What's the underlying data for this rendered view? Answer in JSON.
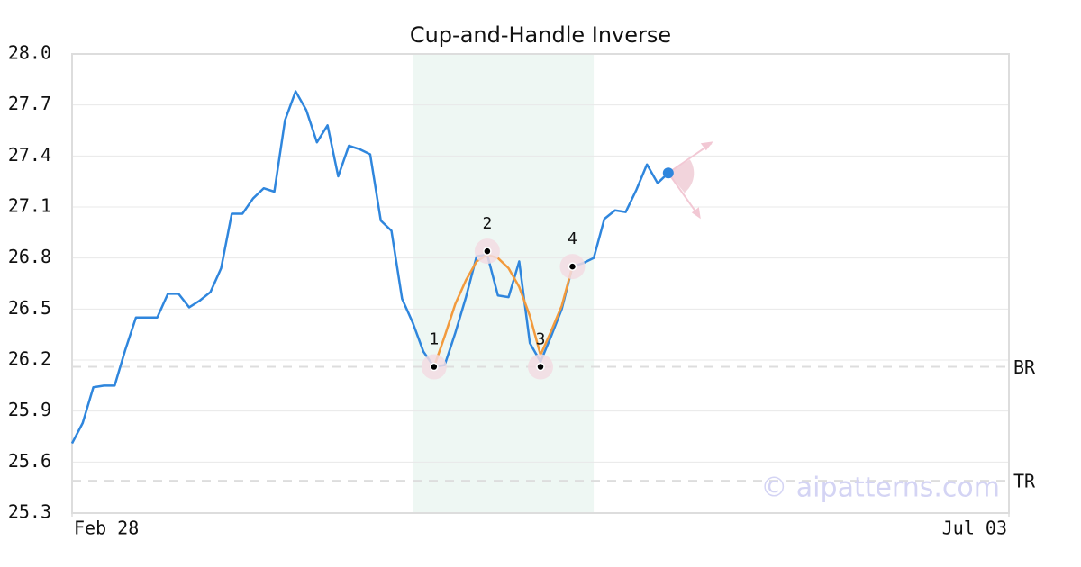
{
  "chart_data": {
    "type": "line",
    "title": "Cup-and-Handle Inverse",
    "x": [
      0,
      1,
      2,
      3,
      4,
      5,
      6,
      7,
      8,
      9,
      10,
      11,
      12,
      13,
      14,
      15,
      16,
      17,
      18,
      19,
      20,
      21,
      22,
      23,
      24,
      25,
      26,
      27,
      28,
      29,
      30,
      31,
      32,
      33,
      34,
      35,
      36,
      37,
      38,
      39,
      40,
      41,
      42,
      43,
      44,
      45,
      46,
      47,
      48,
      49,
      50,
      51,
      52,
      53,
      54,
      55,
      56
    ],
    "xlim": [
      0,
      88
    ],
    "xticks": [
      {
        "value": 0,
        "label": "Feb 28"
      },
      {
        "value": 88,
        "label": "Jul 03"
      }
    ],
    "ylim": [
      25.3,
      28.0
    ],
    "yticks": [
      25.3,
      25.6,
      25.9,
      26.2,
      26.5,
      26.8,
      27.1,
      27.4,
      27.7,
      {
        "value": 28.0,
        "label": "28.0"
      }
    ],
    "grid": true,
    "series": [
      {
        "color": "#2f86dd",
        "values": [
          25.71,
          25.83,
          26.04,
          26.05,
          26.05,
          26.26,
          26.45,
          26.45,
          26.45,
          26.59,
          26.59,
          26.51,
          26.55,
          26.6,
          26.74,
          27.06,
          27.06,
          27.15,
          27.21,
          27.19,
          27.61,
          27.78,
          27.67,
          27.48,
          27.58,
          27.28,
          27.46,
          27.44,
          27.41,
          27.02,
          26.96,
          26.56,
          26.42,
          26.25,
          26.16,
          26.17,
          26.36,
          26.57,
          26.81,
          26.82,
          26.58,
          26.57,
          26.78,
          26.3,
          26.19,
          26.34,
          26.5,
          26.75,
          26.77,
          26.8,
          27.03,
          27.08,
          27.07,
          27.2,
          27.35,
          27.24,
          27.3
        ]
      },
      {
        "color": "#f29a3c",
        "values": [
          null,
          null,
          null,
          null,
          null,
          null,
          null,
          null,
          null,
          null,
          null,
          null,
          null,
          null,
          null,
          null,
          null,
          null,
          null,
          null,
          null,
          null,
          null,
          null,
          null,
          null,
          null,
          null,
          null,
          null,
          null,
          null,
          null,
          null,
          26.16,
          26.34,
          26.53,
          26.67,
          26.78,
          26.82,
          26.8,
          26.74,
          26.63,
          26.46,
          26.23,
          26.37,
          26.52,
          26.75,
          null,
          null,
          null,
          null,
          null,
          null,
          null,
          null,
          null
        ]
      }
    ],
    "pivots": {
      "x": [
        34,
        39,
        44,
        47
      ],
      "values": [
        26.16,
        26.84,
        26.16,
        26.75
      ],
      "labels": [
        "1",
        "2",
        "3",
        "4"
      ]
    },
    "highlight_x": [
      32,
      49
    ],
    "levels": [
      {
        "name": "BR",
        "value": 26.16
      },
      {
        "name": "TR",
        "value": 25.49
      }
    ],
    "watermark": "© aipatterns.com"
  }
}
